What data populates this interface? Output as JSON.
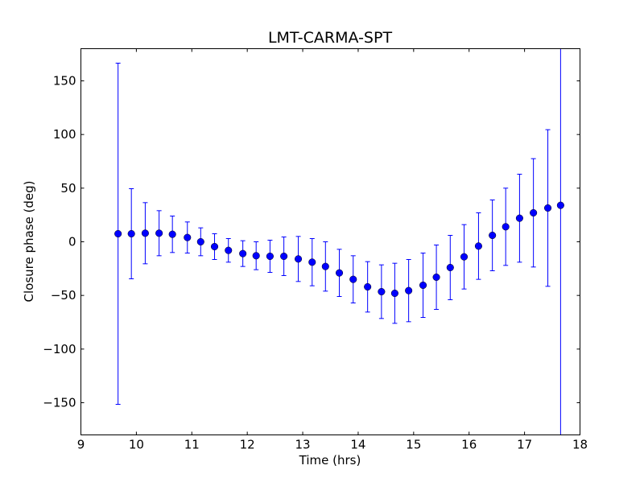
{
  "chart_data": {
    "type": "scatter",
    "subtype": "errorbar",
    "title": "LMT-CARMA-SPT",
    "xlabel": "Time (hrs)",
    "ylabel": "Closure phase (deg)",
    "xlim": [
      9,
      18
    ],
    "ylim": [
      -180,
      180
    ],
    "xticks": [
      9,
      10,
      11,
      12,
      13,
      14,
      15,
      16,
      17,
      18
    ],
    "yticks": [
      -150,
      -100,
      -50,
      0,
      50,
      100,
      150
    ],
    "ytick_labels": [
      "−150",
      "−100",
      "−50",
      "0",
      "50",
      "100",
      "150"
    ],
    "grid": false,
    "color": "#0000ff",
    "series": [
      {
        "name": "closure phase",
        "x": [
          9.67,
          9.91,
          10.16,
          10.41,
          10.65,
          10.92,
          11.16,
          11.41,
          11.66,
          11.92,
          12.16,
          12.41,
          12.66,
          12.92,
          13.17,
          13.41,
          13.66,
          13.91,
          14.17,
          14.42,
          14.66,
          14.91,
          15.17,
          15.41,
          15.66,
          15.91,
          16.17,
          16.42,
          16.66,
          16.91,
          17.16,
          17.42,
          17.65
        ],
        "y": [
          7.5,
          7.5,
          8,
          8,
          7,
          4,
          0,
          -4.5,
          -8,
          -11,
          -13,
          -13.5,
          -13.5,
          -16,
          -19,
          -23,
          -29,
          -35,
          -42,
          -46.5,
          -48,
          -45.5,
          -40.5,
          -33,
          -24,
          -14,
          -4,
          6,
          14,
          22,
          27,
          31.5,
          34
        ],
        "yerr": [
          159,
          42,
          28.5,
          21,
          17,
          14.5,
          13,
          12,
          11,
          12,
          13,
          15,
          18,
          21,
          22,
          23,
          22,
          22,
          23.5,
          25,
          28,
          29,
          30,
          30,
          30,
          30,
          31,
          33,
          36,
          41,
          50.5,
          73,
          250
        ]
      }
    ]
  }
}
